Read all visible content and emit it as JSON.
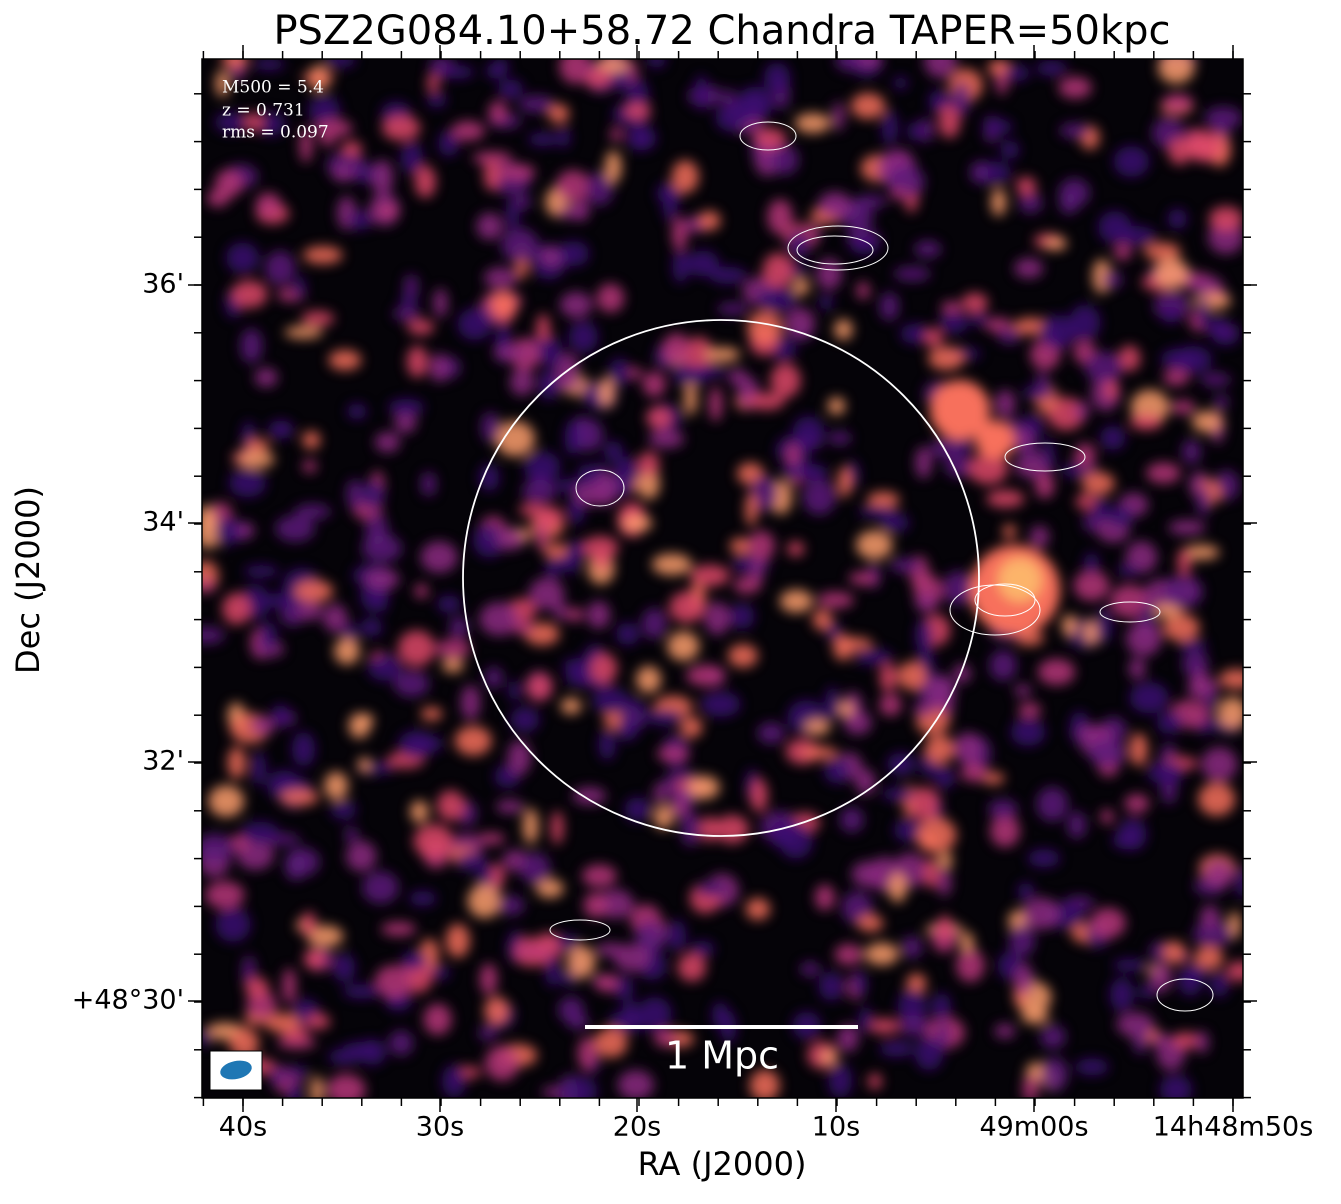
{
  "header": {
    "title": "PSZ2G084.10+58.72 Chandra TAPER=50kpc"
  },
  "axes": {
    "x_label": "RA (J2000)",
    "y_label": "Dec (J2000)",
    "x_ticks": [
      "40s",
      "30s",
      "20s",
      "10s",
      "49m00s",
      "14h48m50s"
    ],
    "y_ticks": [
      "36'",
      "34'",
      "32'",
      "+48°30'"
    ]
  },
  "annotations": [
    "M500 = 5.4",
    "z = 0.731",
    "rms = 0.097"
  ],
  "scale_bar": {
    "label": "1 Mpc"
  }
}
